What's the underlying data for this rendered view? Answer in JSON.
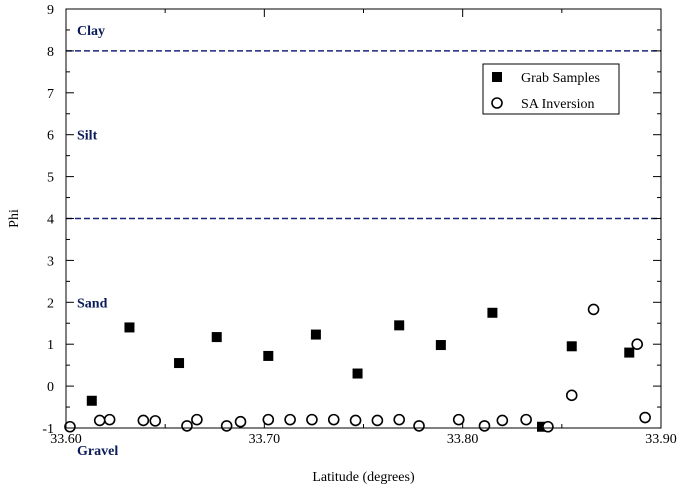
{
  "chart_data": {
    "type": "scatter",
    "xlabel": "Latitude (degrees)",
    "ylabel": "Phi",
    "xlim": [
      33.6,
      33.9
    ],
    "ylim": [
      -1,
      9
    ],
    "x_ticks": [
      33.6,
      33.7,
      33.8,
      33.9
    ],
    "x_tick_labels": [
      "33.60",
      "33.70",
      "33.80",
      "33.90"
    ],
    "y_ticks": [
      -1,
      0,
      1,
      2,
      3,
      4,
      5,
      6,
      7,
      8,
      9
    ],
    "y_tick_labels": [
      "-1",
      "0",
      "1",
      "2",
      "3",
      "4",
      "5",
      "6",
      "7",
      "8",
      "9"
    ],
    "grid": false,
    "legend_position": "top-right",
    "reference_lines": [
      {
        "y": 8,
        "style": "dashed",
        "color": "#1a237e"
      },
      {
        "y": 4,
        "style": "dashed",
        "color": "#1a237e"
      }
    ],
    "region_labels": [
      {
        "text": "Clay",
        "y": 8.5
      },
      {
        "text": "Silt",
        "y": 6.0
      },
      {
        "text": "Sand",
        "y": 2.0
      },
      {
        "text": "Gravel",
        "y": -1.5
      }
    ],
    "series": [
      {
        "name": "Grab Samples",
        "marker": "square",
        "color": "#000000",
        "x": [
          33.613,
          33.632,
          33.657,
          33.676,
          33.702,
          33.726,
          33.747,
          33.768,
          33.789,
          33.815,
          33.84,
          33.855,
          33.884
        ],
        "y": [
          -0.35,
          1.4,
          0.55,
          1.17,
          0.72,
          1.23,
          0.3,
          1.45,
          0.98,
          1.75,
          -0.97,
          0.95,
          0.8
        ]
      },
      {
        "name": "SA Inversion",
        "marker": "open-circle",
        "color": "#000000",
        "x": [
          33.602,
          33.622,
          33.645,
          33.666,
          33.688,
          33.702,
          33.724,
          33.746,
          33.768,
          33.798,
          33.82,
          33.866,
          33.888,
          33.617,
          33.639,
          33.661,
          33.681,
          33.713,
          33.735,
          33.757,
          33.778,
          33.811,
          33.832,
          33.843,
          33.855,
          33.892
        ],
        "y": [
          -0.97,
          -0.8,
          -0.83,
          -0.8,
          -0.85,
          -0.8,
          -0.8,
          -0.82,
          -0.8,
          -0.8,
          -0.82,
          1.83,
          1.0,
          -0.82,
          -0.82,
          -0.95,
          -0.95,
          -0.8,
          -0.8,
          -0.82,
          -0.95,
          -0.95,
          -0.8,
          -0.97,
          -0.22,
          -0.75
        ]
      }
    ]
  },
  "legend": {
    "items": [
      {
        "label": "Grab Samples"
      },
      {
        "label": "SA Inversion"
      }
    ]
  }
}
